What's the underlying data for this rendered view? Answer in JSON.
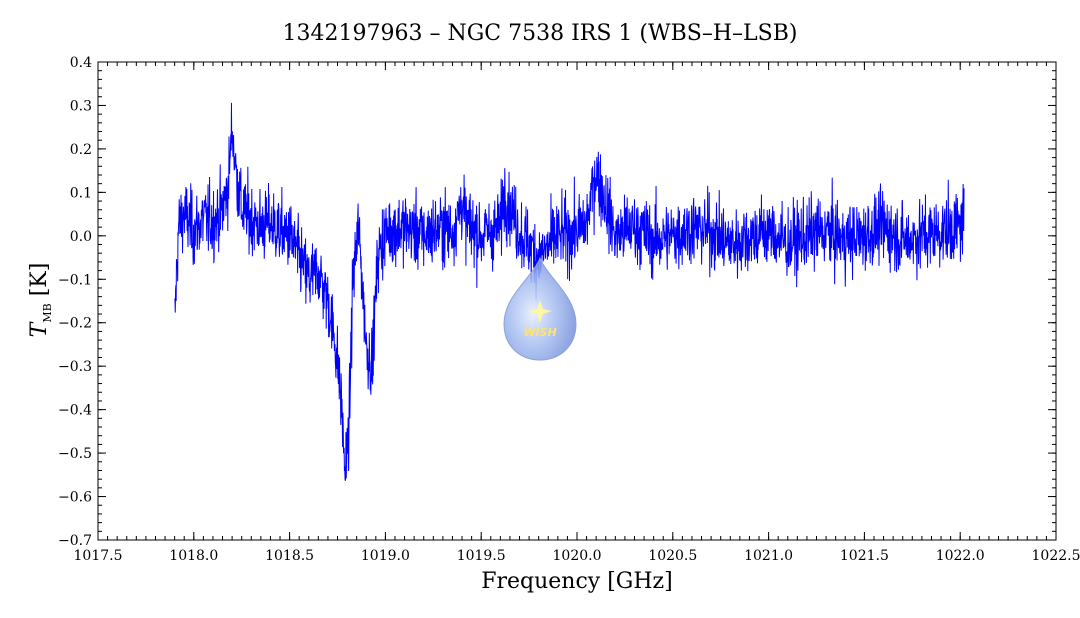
{
  "chart_data": {
    "type": "line",
    "title": "1342197963 – NGC 7538 IRS 1 (WBS–H–LSB)",
    "xlabel": "Frequency [GHz]",
    "ylabel": "T",
    "ylabel_sub": "MB",
    "ylabel_unit": " [K]",
    "xlim": [
      1017.5,
      1022.5
    ],
    "ylim": [
      -0.7,
      0.4
    ],
    "xticks": [
      "1017.5",
      "1018.0",
      "1018.5",
      "1019.0",
      "1019.5",
      "1020.0",
      "1020.5",
      "1021.0",
      "1021.5",
      "1022.0",
      "1022.5"
    ],
    "yticks": [
      "0.4",
      "0.3",
      "0.2",
      "0.1",
      "0.0",
      "−0.1",
      "−0.2",
      "−0.3",
      "−0.4",
      "−0.5",
      "−0.6",
      "−0.7"
    ],
    "grid": false,
    "line_color": "#0000ff",
    "series": [
      {
        "x": [
          1017.9,
          1017.92,
          1017.95,
          1018.0,
          1018.05,
          1018.1,
          1018.15,
          1018.18,
          1018.2,
          1018.22,
          1018.25,
          1018.3,
          1018.35,
          1018.4,
          1018.45,
          1018.5,
          1018.55,
          1018.6,
          1018.65,
          1018.7,
          1018.74,
          1018.77,
          1018.79,
          1018.81,
          1018.83,
          1018.86,
          1018.9,
          1018.93,
          1018.96,
          1019.0,
          1019.1,
          1019.2,
          1019.3,
          1019.35,
          1019.4,
          1019.42,
          1019.5,
          1019.6,
          1019.62,
          1019.7,
          1019.75,
          1019.8,
          1019.9,
          1020.0,
          1020.05,
          1020.1,
          1020.2,
          1020.3,
          1020.4,
          1020.5,
          1020.6,
          1020.7,
          1020.8,
          1020.9,
          1021.0,
          1021.1,
          1021.2,
          1021.3,
          1021.4,
          1021.5,
          1021.6,
          1021.7,
          1021.8,
          1021.9,
          1022.0,
          1022.02
        ],
        "y": [
          -0.2,
          0.02,
          0.05,
          0.01,
          0.04,
          0.03,
          0.06,
          0.12,
          0.25,
          0.15,
          0.06,
          0.04,
          0.02,
          0.03,
          0.01,
          0.0,
          -0.05,
          -0.1,
          -0.08,
          -0.15,
          -0.25,
          -0.38,
          -0.55,
          -0.45,
          -0.1,
          0.02,
          -0.25,
          -0.3,
          -0.05,
          0.01,
          0.02,
          0.0,
          0.02,
          0.01,
          0.08,
          0.03,
          0.0,
          0.02,
          0.1,
          0.01,
          -0.02,
          -0.05,
          0.0,
          0.01,
          0.03,
          0.15,
          0.0,
          0.02,
          -0.01,
          0.0,
          0.02,
          0.01,
          -0.02,
          0.0,
          0.01,
          -0.02,
          0.0,
          0.01,
          -0.01,
          0.0,
          0.02,
          -0.01,
          0.0,
          0.01,
          0.02,
          0.05
        ],
        "noise_sigma": 0.045
      }
    ],
    "watermark": "WISH"
  }
}
